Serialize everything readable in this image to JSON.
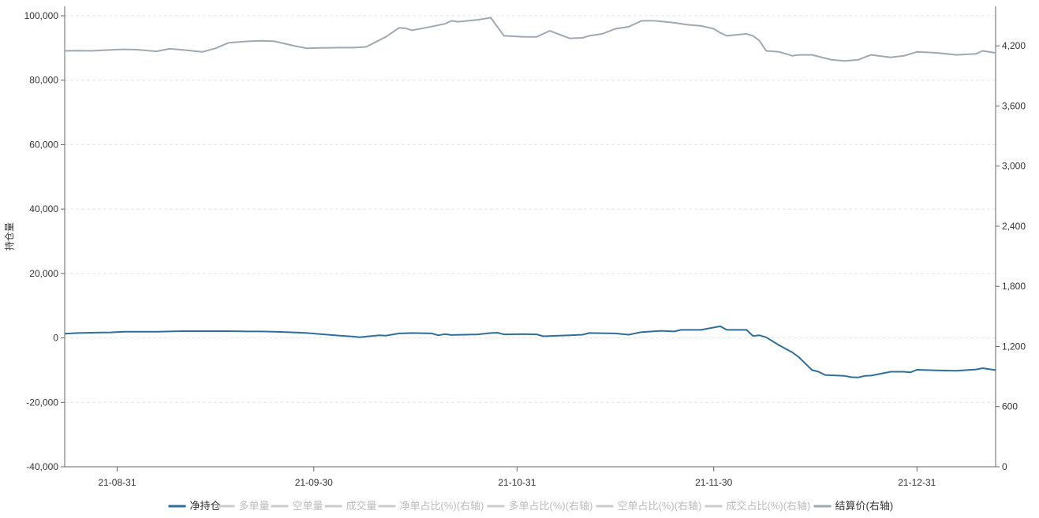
{
  "chart_data": {
    "type": "line",
    "ylabel": "持仓量",
    "y_left": {
      "min": -40000,
      "max": 100000,
      "ticks": [
        "-40,000",
        "-20,000",
        "0",
        "20,000",
        "40,000",
        "60,000",
        "80,000",
        "100,000"
      ],
      "tick_values": [
        -40000,
        -20000,
        0,
        20000,
        40000,
        60000,
        80000,
        100000
      ]
    },
    "y_right": {
      "min": 0,
      "max": 4500,
      "ticks": [
        "0",
        "600",
        "1,200",
        "1,800",
        "2,400",
        "3,000",
        "3,600",
        "4,200"
      ],
      "tick_values": [
        0,
        600,
        1200,
        1800,
        2400,
        3000,
        3600,
        4200
      ]
    },
    "x_range": [
      "2021-08-23",
      "2022-01-12"
    ],
    "x_ticks": [
      {
        "label": "21-08-31",
        "date": "2021-08-31"
      },
      {
        "label": "21-09-30",
        "date": "2021-09-30"
      },
      {
        "label": "21-10-31",
        "date": "2021-10-31"
      },
      {
        "label": "21-11-30",
        "date": "2021-11-30"
      },
      {
        "label": "21-12-31",
        "date": "2021-12-31"
      }
    ],
    "grid": true,
    "legend_position": "bottom",
    "legend": [
      {
        "name": "净持仓",
        "color": "#2e6f99",
        "active": true
      },
      {
        "name": "多单量",
        "color": "#cccccc",
        "active": false
      },
      {
        "name": "空单量",
        "color": "#cccccc",
        "active": false
      },
      {
        "name": "成交量",
        "color": "#cccccc",
        "active": false
      },
      {
        "name": "净单占比(%)(右轴)",
        "color": "#cccccc",
        "active": false
      },
      {
        "name": "多单占比(%)(右轴)",
        "color": "#cccccc",
        "active": false
      },
      {
        "name": "空单占比(%)(右轴)",
        "color": "#cccccc",
        "active": false
      },
      {
        "name": "成交占比(%)(右轴)",
        "color": "#cccccc",
        "active": false
      },
      {
        "name": "结算价(右轴)",
        "color": "#a0a8b2",
        "active": true
      }
    ],
    "series": [
      {
        "name": "净持仓",
        "axis": "left",
        "color": "#2e6f99",
        "points": [
          [
            "2021-08-23",
            1300
          ],
          [
            "2021-08-25",
            1500
          ],
          [
            "2021-08-27",
            1600
          ],
          [
            "2021-08-30",
            1700
          ],
          [
            "2021-09-01",
            1900
          ],
          [
            "2021-09-03",
            1900
          ],
          [
            "2021-09-06",
            1900
          ],
          [
            "2021-09-08",
            2000
          ],
          [
            "2021-09-10",
            2100
          ],
          [
            "2021-09-13",
            2100
          ],
          [
            "2021-09-15",
            2100
          ],
          [
            "2021-09-17",
            2100
          ],
          [
            "2021-09-20",
            2000
          ],
          [
            "2021-09-22",
            2000
          ],
          [
            "2021-09-24",
            1900
          ],
          [
            "2021-09-27",
            1700
          ],
          [
            "2021-09-29",
            1500
          ],
          [
            "2021-10-01",
            1200
          ],
          [
            "2021-10-04",
            700
          ],
          [
            "2021-10-06",
            400
          ],
          [
            "2021-10-07",
            200
          ],
          [
            "2021-10-08",
            400
          ],
          [
            "2021-10-10",
            800
          ],
          [
            "2021-10-11",
            700
          ],
          [
            "2021-10-13",
            1400
          ],
          [
            "2021-10-15",
            1500
          ],
          [
            "2021-10-18",
            1400
          ],
          [
            "2021-10-19",
            800
          ],
          [
            "2021-10-20",
            1200
          ],
          [
            "2021-10-21",
            900
          ],
          [
            "2021-10-25",
            1100
          ],
          [
            "2021-10-27",
            1500
          ],
          [
            "2021-10-28",
            1600
          ],
          [
            "2021-10-29",
            1100
          ],
          [
            "2021-11-01",
            1200
          ],
          [
            "2021-11-03",
            1100
          ],
          [
            "2021-11-04",
            500
          ],
          [
            "2021-11-08",
            800
          ],
          [
            "2021-11-10",
            1000
          ],
          [
            "2021-11-11",
            1500
          ],
          [
            "2021-11-15",
            1400
          ],
          [
            "2021-11-17",
            1000
          ],
          [
            "2021-11-19",
            1800
          ],
          [
            "2021-11-22",
            2200
          ],
          [
            "2021-11-24",
            2000
          ],
          [
            "2021-11-25",
            2500
          ],
          [
            "2021-11-28",
            2500
          ],
          [
            "2021-12-01",
            3600
          ],
          [
            "2021-12-02",
            2500
          ],
          [
            "2021-12-05",
            2500
          ],
          [
            "2021-12-06",
            600
          ],
          [
            "2021-12-07",
            800
          ],
          [
            "2021-12-08",
            200
          ],
          [
            "2021-12-10",
            -2300
          ],
          [
            "2021-12-12",
            -4500
          ],
          [
            "2021-12-13",
            -6000
          ],
          [
            "2021-12-15",
            -10000
          ],
          [
            "2021-12-16",
            -10500
          ],
          [
            "2021-12-17",
            -11500
          ],
          [
            "2021-12-20",
            -11800
          ],
          [
            "2021-12-21",
            -12200
          ],
          [
            "2021-12-22",
            -12300
          ],
          [
            "2021-12-23",
            -11800
          ],
          [
            "2021-12-24",
            -11700
          ],
          [
            "2021-12-27",
            -10500
          ],
          [
            "2021-12-29",
            -10500
          ],
          [
            "2021-12-30",
            -10700
          ],
          [
            "2021-12-31",
            -9900
          ],
          [
            "2022-01-03",
            -10100
          ],
          [
            "2022-01-06",
            -10200
          ],
          [
            "2022-01-09",
            -9800
          ],
          [
            "2022-01-10",
            -9400
          ],
          [
            "2022-01-12",
            -10000
          ]
        ]
      },
      {
        "name": "结算价(右轴)",
        "axis": "right",
        "color": "#a0a8b2",
        "points": [
          [
            "2021-08-23",
            4150
          ],
          [
            "2021-08-25",
            4152
          ],
          [
            "2021-08-27",
            4150
          ],
          [
            "2021-08-30",
            4160
          ],
          [
            "2021-09-01",
            4165
          ],
          [
            "2021-09-03",
            4162
          ],
          [
            "2021-09-06",
            4145
          ],
          [
            "2021-09-08",
            4170
          ],
          [
            "2021-09-10",
            4160
          ],
          [
            "2021-09-13",
            4140
          ],
          [
            "2021-09-15",
            4175
          ],
          [
            "2021-09-17",
            4230
          ],
          [
            "2021-09-20",
            4245
          ],
          [
            "2021-09-22",
            4250
          ],
          [
            "2021-09-24",
            4245
          ],
          [
            "2021-09-27",
            4200
          ],
          [
            "2021-09-29",
            4175
          ],
          [
            "2021-10-01",
            4180
          ],
          [
            "2021-10-04",
            4182
          ],
          [
            "2021-10-06",
            4182
          ],
          [
            "2021-10-07",
            4185
          ],
          [
            "2021-10-08",
            4190
          ],
          [
            "2021-10-11",
            4290
          ],
          [
            "2021-10-13",
            4380
          ],
          [
            "2021-10-14",
            4375
          ],
          [
            "2021-10-15",
            4355
          ],
          [
            "2021-10-17",
            4380
          ],
          [
            "2021-10-20",
            4420
          ],
          [
            "2021-10-21",
            4450
          ],
          [
            "2021-10-22",
            4440
          ],
          [
            "2021-10-25",
            4460
          ],
          [
            "2021-10-27",
            4480
          ],
          [
            "2021-10-29",
            4300
          ],
          [
            "2021-11-01",
            4290
          ],
          [
            "2021-11-03",
            4290
          ],
          [
            "2021-11-05",
            4350
          ],
          [
            "2021-11-08",
            4275
          ],
          [
            "2021-11-10",
            4280
          ],
          [
            "2021-11-11",
            4300
          ],
          [
            "2021-11-13",
            4320
          ],
          [
            "2021-11-15",
            4370
          ],
          [
            "2021-11-17",
            4390
          ],
          [
            "2021-11-19",
            4450
          ],
          [
            "2021-11-21",
            4450
          ],
          [
            "2021-11-24",
            4430
          ],
          [
            "2021-11-26",
            4410
          ],
          [
            "2021-11-28",
            4400
          ],
          [
            "2021-11-30",
            4370
          ],
          [
            "2021-12-01",
            4330
          ],
          [
            "2021-12-02",
            4300
          ],
          [
            "2021-12-05",
            4320
          ],
          [
            "2021-12-06",
            4300
          ],
          [
            "2021-12-07",
            4250
          ],
          [
            "2021-12-08",
            4150
          ],
          [
            "2021-12-10",
            4140
          ],
          [
            "2021-12-12",
            4100
          ],
          [
            "2021-12-13",
            4110
          ],
          [
            "2021-12-15",
            4110
          ],
          [
            "2021-12-18",
            4060
          ],
          [
            "2021-12-20",
            4050
          ],
          [
            "2021-12-22",
            4060
          ],
          [
            "2021-12-24",
            4110
          ],
          [
            "2021-12-27",
            4085
          ],
          [
            "2021-12-29",
            4100
          ],
          [
            "2021-12-31",
            4140
          ],
          [
            "2022-01-03",
            4130
          ],
          [
            "2022-01-06",
            4110
          ],
          [
            "2022-01-09",
            4120
          ],
          [
            "2022-01-10",
            4150
          ],
          [
            "2022-01-12",
            4130
          ]
        ]
      }
    ]
  }
}
